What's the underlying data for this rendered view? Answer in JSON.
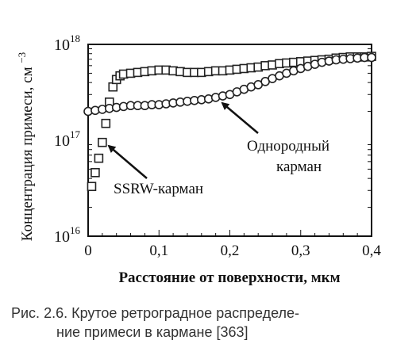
{
  "chart_data": {
    "type": "scatter",
    "y_scale": "log",
    "xlim": [
      0,
      0.4
    ],
    "ylim": [
      1e+16,
      1e+18
    ],
    "x_ticks": [
      "0",
      "0,1",
      "0,2",
      "0,3",
      "0,4"
    ],
    "y_ticks": [
      {
        "base": "10",
        "exp": "16",
        "value": 1e+16
      },
      {
        "base": "10",
        "exp": "17",
        "value": 1e+17
      },
      {
        "base": "10",
        "exp": "18",
        "value": 1e+18
      }
    ],
    "xlabel": "Расстояние от поверхности, мкм",
    "ylabel_main": "Концентрация примеси, см",
    "ylabel_exp": "−3",
    "grid": false,
    "series": [
      {
        "name": "SSRW-карман",
        "marker": "square",
        "x": [
          0.005,
          0.01,
          0.015,
          0.02,
          0.025,
          0.03,
          0.035,
          0.04,
          0.045,
          0.05,
          0.06,
          0.07,
          0.08,
          0.09,
          0.1,
          0.11,
          0.12,
          0.13,
          0.14,
          0.15,
          0.16,
          0.17,
          0.18,
          0.19,
          0.2,
          0.21,
          0.22,
          0.23,
          0.24,
          0.25,
          0.26,
          0.27,
          0.28,
          0.29,
          0.3,
          0.31,
          0.32,
          0.33,
          0.34,
          0.35,
          0.36,
          0.37,
          0.38,
          0.39,
          0.4
        ],
        "y": [
          3.3e+16,
          4.6e+16,
          6.5e+16,
          9.5e+16,
          1.5e+17,
          2.5e+17,
          3.6e+17,
          4.3e+17,
          4.7e+17,
          4.9e+17,
          5e+17,
          5.1e+17,
          5.2e+17,
          5.3e+17,
          5.4e+17,
          5.4e+17,
          5.3e+17,
          5.2e+17,
          5.1e+17,
          5.1e+17,
          5.1e+17,
          5.2e+17,
          5.3e+17,
          5.3e+17,
          5.4e+17,
          5.5e+17,
          5.6e+17,
          5.7e+17,
          5.8e+17,
          6e+17,
          6.1e+17,
          6.3e+17,
          6.4e+17,
          6.5e+17,
          6.6e+17,
          6.7e+17,
          6.8e+17,
          6.9e+17,
          7e+17,
          7.2e+17,
          7.3e+17,
          7.4e+17,
          7.4e+17,
          7.4e+17,
          7.5e+17
        ]
      },
      {
        "name": "Однородный карман",
        "marker": "circle",
        "x": [
          0.0,
          0.01,
          0.02,
          0.03,
          0.04,
          0.05,
          0.06,
          0.07,
          0.08,
          0.09,
          0.1,
          0.11,
          0.12,
          0.13,
          0.14,
          0.15,
          0.16,
          0.17,
          0.18,
          0.19,
          0.2,
          0.21,
          0.22,
          0.23,
          0.24,
          0.25,
          0.26,
          0.27,
          0.28,
          0.29,
          0.3,
          0.31,
          0.32,
          0.33,
          0.34,
          0.35,
          0.36,
          0.37,
          0.38,
          0.39,
          0.4
        ],
        "y": [
          2e+17,
          2.05e+17,
          2.1e+17,
          2.15e+17,
          2.2e+17,
          2.25e+17,
          2.3e+17,
          2.3e+17,
          2.3e+17,
          2.35e+17,
          2.35e+17,
          2.4e+17,
          2.45e+17,
          2.5e+17,
          2.55e+17,
          2.6e+17,
          2.65e+17,
          2.7e+17,
          2.8e+17,
          2.9e+17,
          3e+17,
          3.2e+17,
          3.4e+17,
          3.6e+17,
          3.8e+17,
          4.1e+17,
          4.4e+17,
          4.7e+17,
          5e+17,
          5.3e+17,
          5.6e+17,
          5.9e+17,
          6.2e+17,
          6.5e+17,
          6.7e+17,
          6.9e+17,
          7e+17,
          7.1e+17,
          7.2e+17,
          7.3e+17,
          7.3e+17
        ]
      }
    ],
    "annotations": [
      {
        "lines": [
          "SSRW-карман"
        ],
        "target_series": 0
      },
      {
        "lines": [
          "Однородный",
          "карман"
        ],
        "target_series": 1
      }
    ]
  },
  "caption": {
    "line1": "Рис. 2.6. Крутое ретроградное распределе-",
    "line2": "ние примеси в кармане [363]"
  }
}
